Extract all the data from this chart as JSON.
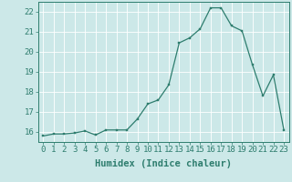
{
  "x": [
    0,
    1,
    2,
    3,
    4,
    5,
    6,
    7,
    8,
    9,
    10,
    11,
    12,
    13,
    14,
    15,
    16,
    17,
    18,
    19,
    20,
    21,
    22,
    23
  ],
  "y": [
    15.8,
    15.9,
    15.9,
    15.95,
    16.05,
    15.85,
    16.1,
    16.1,
    16.1,
    16.65,
    17.4,
    17.6,
    18.35,
    20.45,
    20.7,
    21.15,
    22.2,
    22.2,
    21.3,
    21.05,
    19.35,
    17.8,
    18.85,
    16.1
  ],
  "xlabel": "Humidex (Indice chaleur)",
  "xlim": [
    -0.5,
    23.5
  ],
  "ylim": [
    15.5,
    22.5
  ],
  "yticks": [
    16,
    17,
    18,
    19,
    20,
    21,
    22
  ],
  "xticks": [
    0,
    1,
    2,
    3,
    4,
    5,
    6,
    7,
    8,
    9,
    10,
    11,
    12,
    13,
    14,
    15,
    16,
    17,
    18,
    19,
    20,
    21,
    22,
    23
  ],
  "line_color": "#2e7d6e",
  "marker_color": "#2e7d6e",
  "bg_color": "#cce8e8",
  "grid_color": "#ffffff",
  "axis_color": "#2e7d6e",
  "tick_color": "#2e7d6e",
  "label_color": "#2e7d6e",
  "font_size": 6.5,
  "xlabel_fontsize": 7.5
}
